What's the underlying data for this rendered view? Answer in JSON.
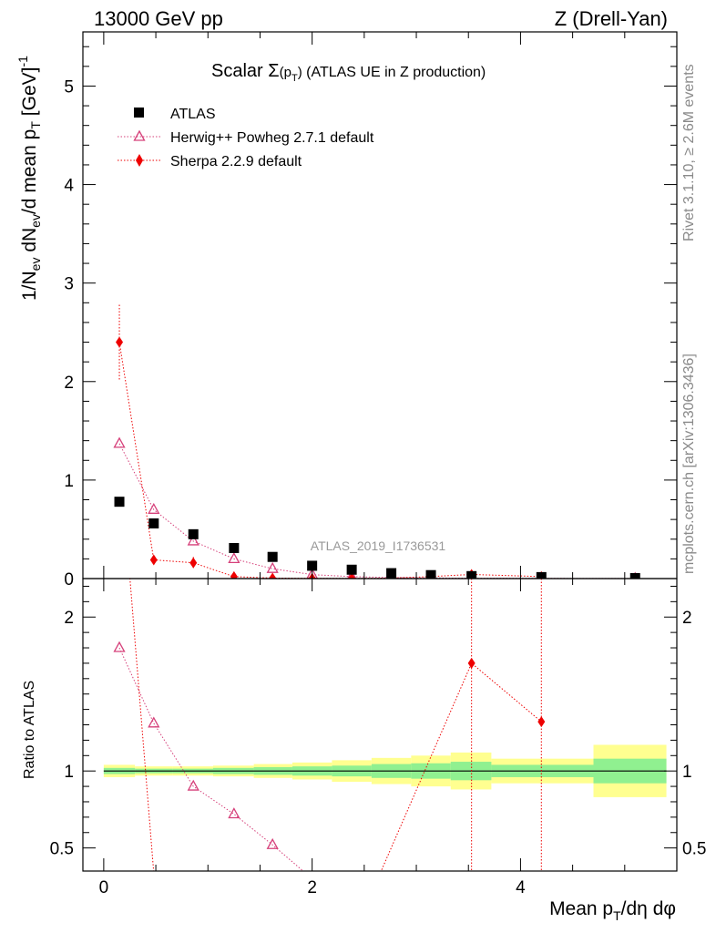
{
  "header": {
    "left": "13000 GeV pp",
    "right": "Z (Drell-Yan)"
  },
  "side_labels": {
    "top": "Rivet 3.1.10, ≥ 2.6M events",
    "bottom": "mcplots.cern.ch [arXiv:1306.3436]"
  },
  "analysis_id": "ATLAS_2019_I1736531",
  "colors": {
    "atlas": "#000000",
    "herwig": "#d6407a",
    "sherpa": "#ee0000",
    "band_inner": "#90f090",
    "band_outer": "#ffff90"
  },
  "chart_data": [
    {
      "type": "scatter",
      "title": "Scalar Σ(p_T) (ATLAS UE in Z production)",
      "title_parts": {
        "pre": "Scalar ",
        "sigma": "Σ",
        "p": "(p",
        "sub": "T",
        "post": ")",
        "rest": " (ATLAS UE in Z production)"
      },
      "ylabel": "1/N_ev dN_ev/d mean p_T [GeV]^-1",
      "xlim": [
        -0.2,
        5.5
      ],
      "ylim": [
        0,
        5.55
      ],
      "yticks": [
        "0",
        "1",
        "2",
        "3",
        "4",
        "5"
      ],
      "legend_position": "top-left",
      "series": [
        {
          "name": "ATLAS",
          "marker": "square",
          "x": [
            0.15,
            0.48,
            0.86,
            1.25,
            1.62,
            2.0,
            2.38,
            2.76,
            3.14,
            3.53,
            4.2,
            5.1
          ],
          "y": [
            0.78,
            0.56,
            0.45,
            0.31,
            0.22,
            0.13,
            0.09,
            0.055,
            0.035,
            0.025,
            0.015,
            0.005
          ]
        },
        {
          "name": "Herwig++ Powheg 2.7.1 default",
          "marker": "open-triangle",
          "x": [
            0.15,
            0.48,
            0.86,
            1.25,
            1.62,
            2.0,
            2.38,
            2.76,
            3.14,
            3.53,
            4.2,
            5.1
          ],
          "y": [
            1.37,
            0.7,
            0.38,
            0.2,
            0.1,
            0.04,
            0.02,
            0.01,
            0.006,
            0.004,
            0.002,
            0.001
          ]
        },
        {
          "name": "Sherpa 2.2.9 default",
          "marker": "diamond",
          "x": [
            0.15,
            0.48,
            0.86,
            1.25,
            1.62,
            2.0,
            2.38,
            2.76,
            3.14,
            3.53,
            4.2
          ],
          "y": [
            2.4,
            0.19,
            0.16,
            0.02,
            0.005,
            0.003,
            0.002,
            0.005,
            0.02,
            0.042,
            0.02
          ],
          "yerr": [
            0.38,
            0.02,
            0.06,
            0.0,
            0.0,
            0.0,
            0.0,
            0.0,
            0.0,
            0.0,
            0.0
          ]
        }
      ]
    },
    {
      "type": "line",
      "ylabel": "Ratio to ATLAS",
      "xlabel": "Mean p_T/dη dφ",
      "xlabel_parts": {
        "pre": "Mean p",
        "sub": "T",
        "post": "/dη dφ"
      },
      "xlim": [
        -0.2,
        5.5
      ],
      "ylim": [
        0.35,
        2.25
      ],
      "xticks": [
        "0",
        "2",
        "4"
      ],
      "yticks": [
        "0.5",
        "1",
        "2"
      ],
      "bands": {
        "edges": [
          0.0,
          0.3,
          0.66,
          1.05,
          1.44,
          1.81,
          2.19,
          2.57,
          2.95,
          3.33,
          3.72,
          4.7,
          5.4
        ],
        "inner": [
          0.02,
          0.015,
          0.015,
          0.02,
          0.025,
          0.03,
          0.035,
          0.045,
          0.05,
          0.06,
          0.04,
          0.08
        ],
        "outer": [
          0.04,
          0.03,
          0.03,
          0.035,
          0.045,
          0.055,
          0.07,
          0.085,
          0.1,
          0.12,
          0.08,
          0.17
        ]
      },
      "series": [
        {
          "name": "Herwig++ Powheg 2.7.1 default",
          "x": [
            0.15,
            0.48,
            0.86,
            1.25,
            1.62,
            2.0
          ],
          "y": [
            1.8,
            1.31,
            0.9,
            0.72,
            0.52,
            0.3
          ]
        },
        {
          "name": "Sherpa 2.2.9 default",
          "x": [
            0.15,
            0.48,
            2.63,
            3.53,
            4.2
          ],
          "y": [
            3.1,
            0.34,
            0.3,
            1.7,
            1.32
          ],
          "markers": [
            false,
            false,
            false,
            true,
            true
          ]
        }
      ]
    }
  ]
}
